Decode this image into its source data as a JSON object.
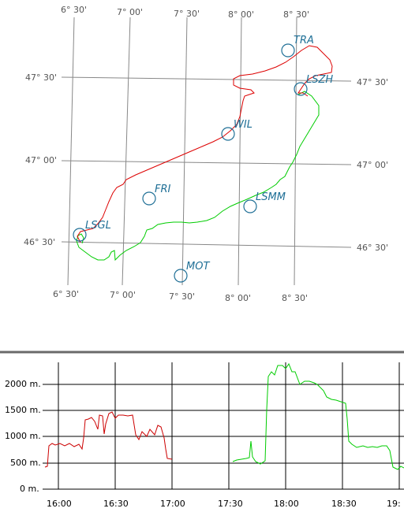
{
  "map": {
    "grid_lon_top": [
      "6° 30'",
      "7° 00'",
      "7° 30'",
      "8° 00'",
      "8° 30'"
    ],
    "grid_lon_bottom": [
      "6° 30'",
      "7° 00'",
      "7° 30'",
      "8° 00'",
      "8° 30'"
    ],
    "grid_lat_left": [
      "47° 30'",
      "47° 00'",
      "46° 30'"
    ],
    "grid_lat_right": [
      "47° 30'",
      "47° 00'",
      "46° 30'"
    ],
    "waypoints": [
      "TRA",
      "LSZH",
      "WIL",
      "FRI",
      "LSMM",
      "LSGL",
      "MOT"
    ],
    "colors": {
      "outbound": "#dd0000",
      "return": "#00cc00",
      "waypoint": "#1f6f96",
      "grid": "#888888"
    }
  },
  "altitude_profile": {
    "y_axis_labels": [
      "2000 m.",
      "1500 m.",
      "1000 m.",
      "500 m.",
      "0 m."
    ],
    "x_axis_labels": [
      "16:00",
      "16:30",
      "17:00",
      "17:30",
      "18:00",
      "18:30",
      "19:"
    ],
    "colors": {
      "outbound": "#cc0000",
      "return": "#00cc00"
    }
  }
}
